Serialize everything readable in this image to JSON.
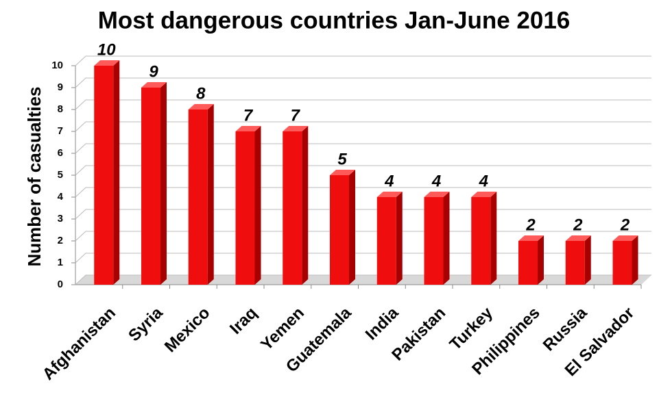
{
  "chart_data": {
    "type": "bar3d",
    "title": "Most dangerous countries Jan-June 2016",
    "y_label": "Number of casualties",
    "categories": [
      "Afghanistan",
      "Syria",
      "Mexico",
      "Iraq",
      "Yemen",
      "Guatemala",
      "India",
      "Pakistan",
      "Turkey",
      "Philippines",
      "Russia",
      "El Salvador"
    ],
    "values": [
      10,
      9,
      8,
      7,
      7,
      5,
      4,
      4,
      4,
      2,
      2,
      2
    ],
    "color": "#f00d0d",
    "ylim": [
      0,
      10
    ],
    "yticks": [
      0,
      1,
      2,
      3,
      4,
      5,
      6,
      7,
      8,
      9,
      10
    ],
    "grid": true
  }
}
